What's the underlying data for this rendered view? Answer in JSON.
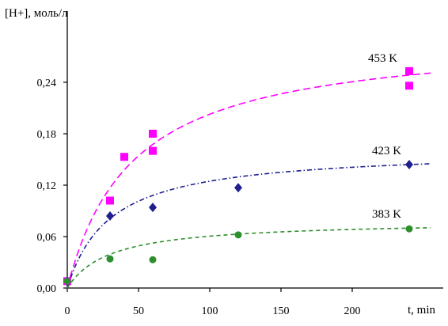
{
  "chart_data": {
    "type": "scatter",
    "title": "",
    "ylabel": "[H+], моль/л",
    "xlabel": "t, min",
    "xlim": [
      0,
      255
    ],
    "ylim": [
      0,
      0.27
    ],
    "x_ticks": [
      0,
      50,
      100,
      150,
      200
    ],
    "x_tick_labels": [
      "0",
      "50",
      "100",
      "150",
      "200"
    ],
    "y_ticks": [
      0,
      0.06,
      0.12,
      0.18,
      0.24
    ],
    "y_tick_labels": [
      "0,00",
      "0,06",
      "0,12",
      "0,18",
      "0,24"
    ],
    "grid": false,
    "legend": "none",
    "series": [
      {
        "name": "453 K",
        "color": "#ff00ff",
        "marker": "square",
        "x": [
          0,
          30,
          40,
          60,
          60,
          240,
          240
        ],
        "y": [
          0.008,
          0.102,
          0.153,
          0.18,
          0.16,
          0.253,
          0.236
        ],
        "fit": {
          "form": "a*x/(b+x)",
          "a": 0.296,
          "b": 46
        }
      },
      {
        "name": "423 K",
        "color": "#1f1f8f",
        "marker": "diamond",
        "x": [
          0,
          30,
          60,
          120,
          240
        ],
        "y": [
          0.008,
          0.084,
          0.094,
          0.117,
          0.144
        ],
        "fit": {
          "form": "a*x/(b+x)",
          "a": 0.162,
          "b": 30
        }
      },
      {
        "name": "383 K",
        "color": "#2d8f2d",
        "marker": "circle",
        "x": [
          0,
          30,
          60,
          120,
          240
        ],
        "y": [
          0.008,
          0.034,
          0.033,
          0.062,
          0.069
        ],
        "fit": {
          "form": "a*x/(b+x)",
          "a": 0.0786,
          "b": 30
        }
      }
    ]
  }
}
